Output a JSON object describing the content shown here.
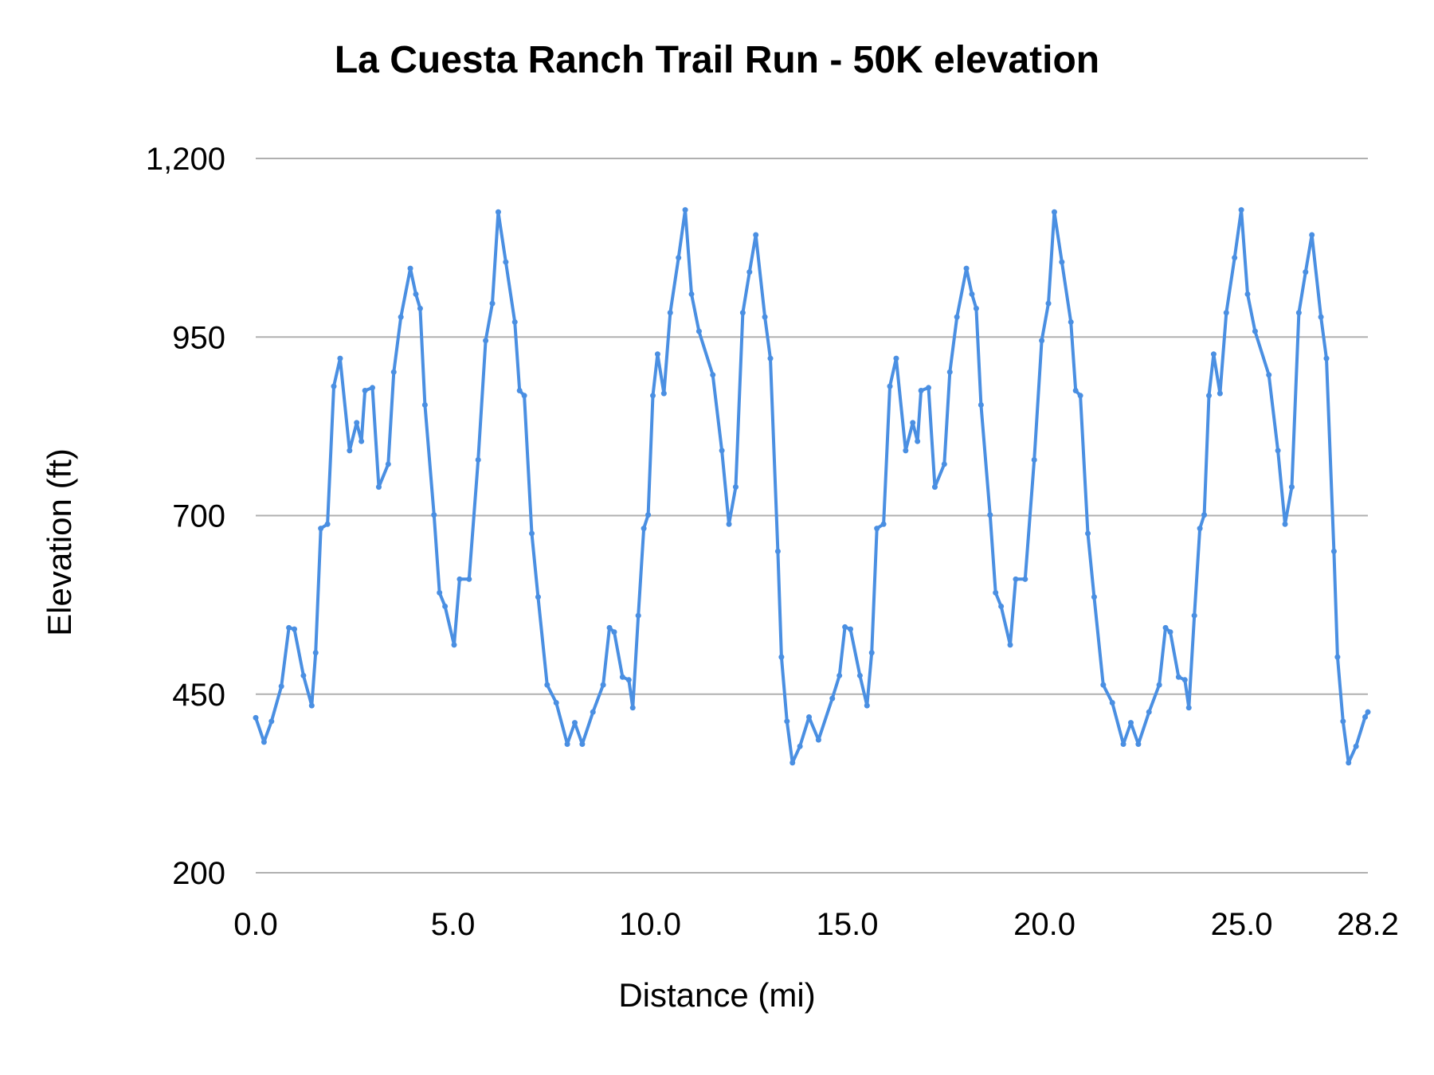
{
  "chart_data": {
    "type": "line",
    "title": "La Cuesta Ranch Trail Run - 50K elevation",
    "xlabel": "Distance (mi)",
    "ylabel": "Elevation (ft)",
    "xlim": [
      0,
      28.2
    ],
    "ylim": [
      200,
      1200
    ],
    "xticks": [
      0,
      5,
      10,
      15,
      20,
      25,
      28.2
    ],
    "xtick_labels": [
      "0.0",
      "5.0",
      "10.0",
      "15.0",
      "20.0",
      "25.0",
      "28.2"
    ],
    "yticks": [
      200,
      450,
      700,
      950,
      1200
    ],
    "ytick_labels": [
      "200",
      "450",
      "700",
      "950",
      "1,200"
    ],
    "grid": "horizontal",
    "legend": "none",
    "markers": true,
    "color": "#4a8fe2",
    "gridline_color": "#b0b0b0",
    "x": [
      0.0,
      0.21,
      0.4,
      0.65,
      0.84,
      0.98,
      1.21,
      1.42,
      1.52,
      1.65,
      1.82,
      1.98,
      2.14,
      2.38,
      2.56,
      2.68,
      2.77,
      2.96,
      3.12,
      3.36,
      3.5,
      3.68,
      3.92,
      4.06,
      4.17,
      4.29,
      4.52,
      4.66,
      4.8,
      5.03,
      5.17,
      5.41,
      5.64,
      5.83,
      6.0,
      6.15,
      6.34,
      6.57,
      6.69,
      6.81,
      7.0,
      7.16,
      7.39,
      7.62,
      7.9,
      8.09,
      8.28,
      8.55,
      8.81,
      8.97,
      9.09,
      9.3,
      9.46,
      9.56,
      9.7,
      9.84,
      9.95,
      10.07,
      10.19,
      10.35,
      10.51,
      10.72,
      10.89,
      11.05,
      11.24,
      11.59,
      11.82,
      12.0,
      12.17,
      12.35,
      12.52,
      12.68,
      12.91,
      13.05,
      13.24,
      13.33,
      13.47,
      13.61,
      13.8,
      14.03,
      14.27,
      14.62,
      14.8,
      14.94,
      15.08,
      15.32,
      15.5,
      15.62,
      15.75,
      15.92,
      16.08,
      16.24,
      16.48,
      16.66,
      16.78,
      16.87,
      17.06,
      17.22,
      17.46,
      17.6,
      17.78,
      18.02,
      18.16,
      18.27,
      18.39,
      18.62,
      18.76,
      18.9,
      19.13,
      19.27,
      19.51,
      19.74,
      19.93,
      20.1,
      20.25,
      20.44,
      20.67,
      20.79,
      20.91,
      21.1,
      21.26,
      21.49,
      21.72,
      22.0,
      22.19,
      22.38,
      22.65,
      22.91,
      23.07,
      23.19,
      23.4,
      23.56,
      23.66,
      23.8,
      23.94,
      24.05,
      24.17,
      24.29,
      24.45,
      24.61,
      24.82,
      24.99,
      25.15,
      25.34,
      25.69,
      25.92,
      26.1,
      26.27,
      26.45,
      26.62,
      26.78,
      27.01,
      27.15,
      27.34,
      27.43,
      27.57,
      27.71,
      27.9,
      28.13,
      28.2
    ],
    "y": [
      417,
      383,
      412,
      461,
      543,
      541,
      476,
      434,
      508,
      682,
      688,
      881,
      920,
      791,
      830,
      804,
      875,
      879,
      740,
      772,
      901,
      978,
      1046,
      1010,
      990,
      855,
      701,
      592,
      573,
      519,
      611,
      611,
      778,
      945,
      997,
      1125,
      1055,
      971,
      875,
      868,
      675,
      586,
      463,
      438,
      380,
      410,
      380,
      425,
      463,
      543,
      537,
      474,
      470,
      431,
      560,
      682,
      701,
      868,
      926,
      871,
      984,
      1061,
      1128,
      1010,
      958,
      897,
      791,
      688,
      740,
      984,
      1041,
      1093,
      978,
      920,
      650,
      502,
      412,
      354,
      377,
      418,
      386,
      444,
      476,
      544,
      541,
      476,
      434,
      508,
      682,
      688,
      881,
      920,
      791,
      830,
      804,
      875,
      879,
      740,
      772,
      901,
      978,
      1046,
      1010,
      990,
      855,
      701,
      592,
      573,
      519,
      611,
      611,
      778,
      945,
      997,
      1125,
      1055,
      971,
      875,
      868,
      675,
      586,
      463,
      438,
      380,
      410,
      380,
      425,
      463,
      543,
      537,
      474,
      470,
      431,
      560,
      682,
      701,
      868,
      926,
      871,
      984,
      1061,
      1128,
      1010,
      958,
      897,
      791,
      688,
      740,
      984,
      1041,
      1093,
      978,
      920,
      650,
      502,
      412,
      354,
      377,
      418,
      425
    ]
  }
}
